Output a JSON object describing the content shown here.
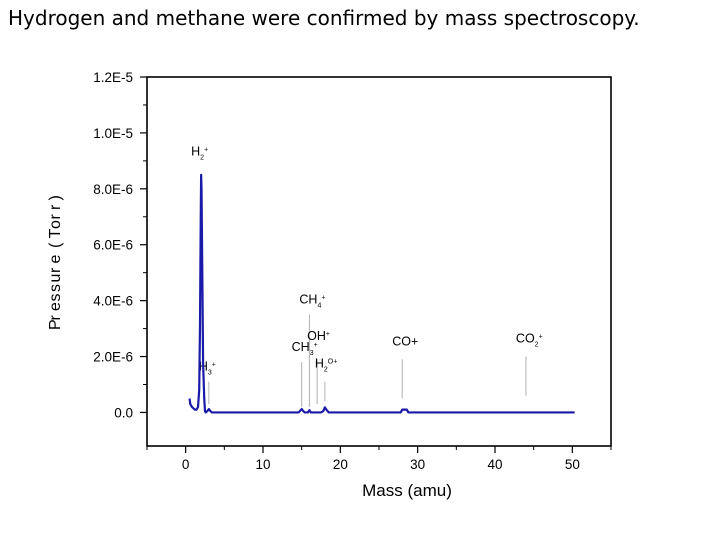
{
  "slide": {
    "title": "Hydrogen and methane were confirmed by mass spectroscopy."
  },
  "chart_data": {
    "type": "line",
    "title": "",
    "xlabel": "Mass (amu)",
    "ylabel_rendered": "Pressure (Torr)",
    "xlim": [
      -5,
      55
    ],
    "ylim": [
      -1.2e-06,
      1.2e-05
    ],
    "x_ticks": [
      0,
      10,
      20,
      30,
      40,
      50
    ],
    "x_tick_labels": [
      "0",
      "10",
      "20",
      "30",
      "40",
      "50"
    ],
    "y_ticks": [
      0,
      2e-06,
      4e-06,
      6e-06,
      8e-06,
      1e-05,
      1.2e-05
    ],
    "y_tick_labels": [
      "0.0",
      "2.0E-6",
      "4.0E-6",
      "6.0E-6",
      "8.0E-6",
      "1.0E-5",
      "1.2E-5"
    ],
    "grid": false,
    "series": [
      {
        "color": "#1a1aa8",
        "x": [
          0.5,
          0.6,
          0.8,
          1.0,
          1.2,
          1.4,
          1.6,
          1.75,
          1.85,
          1.95,
          2.0,
          2.05,
          2.15,
          2.25,
          2.4,
          2.5,
          2.6,
          2.8,
          3.0,
          3.2,
          3.4,
          3.6,
          4.0,
          8.0,
          14.6,
          14.8,
          15.0,
          15.2,
          15.4,
          15.8,
          16.0,
          16.2,
          16.5,
          17.0,
          17.5,
          17.8,
          18.0,
          18.2,
          18.5,
          20.0,
          27.8,
          28.0,
          28.6,
          28.8,
          30.0,
          44.0,
          50.3
        ],
        "y": [
          5e-07,
          3e-07,
          2e-07,
          1.5e-07,
          1e-07,
          1e-07,
          2e-07,
          8e-07,
          3e-06,
          7e-06,
          8.5e-06,
          8e-06,
          5e-06,
          1.8e-06,
          5e-07,
          5e-08,
          0,
          5e-08,
          1.2e-07,
          5e-08,
          0,
          0,
          0,
          0,
          0,
          6e-08,
          1.2e-07,
          5e-08,
          0,
          0,
          8e-08,
          0,
          0,
          0,
          0,
          5e-08,
          1.8e-07,
          1e-07,
          0,
          0,
          0,
          1e-07,
          1e-07,
          0,
          0,
          0,
          0
        ]
      }
    ],
    "annotations": [
      {
        "base": "H",
        "sub": "2",
        "sup": "+",
        "x": 2.0,
        "label_y": 9.2e-06,
        "line_top": null,
        "line_bottom": null
      },
      {
        "base": "H",
        "sub": "3",
        "sup": "+",
        "x": 3.0,
        "label_y": 1.5e-06,
        "line_top": 1.1e-06,
        "line_bottom": 3e-07
      },
      {
        "base": "CH",
        "sub": "3",
        "sup": "+",
        "x": 15.0,
        "label_y": 2.2e-06,
        "line_top": 1.8e-06,
        "line_bottom": 2e-07
      },
      {
        "base": "CH",
        "sub": "4",
        "sup": "+",
        "x": 16.0,
        "label_y": 3.9e-06,
        "line_top": 3.5e-06,
        "line_bottom": 2e-07
      },
      {
        "base": "OH",
        "sub": "",
        "sup": "+",
        "x": 17.0,
        "label_y": 2.6e-06,
        "line_top": 1.9e-06,
        "line_bottom": 3e-07
      },
      {
        "base": "H",
        "sub": "2",
        "sup": "O+",
        "x": 18.0,
        "label_y": 1.6e-06,
        "line_top": 1.1e-06,
        "line_bottom": 4e-07
      },
      {
        "base": "CO+",
        "sub": "",
        "sup": "",
        "x": 28.0,
        "label_y": 2.4e-06,
        "line_top": 1.9e-06,
        "line_bottom": 5e-07
      },
      {
        "base": "CO",
        "sub": "2",
        "sup": "+",
        "x": 44.0,
        "label_y": 2.5e-06,
        "line_top": 2e-06,
        "line_bottom": 6e-07
      }
    ]
  }
}
